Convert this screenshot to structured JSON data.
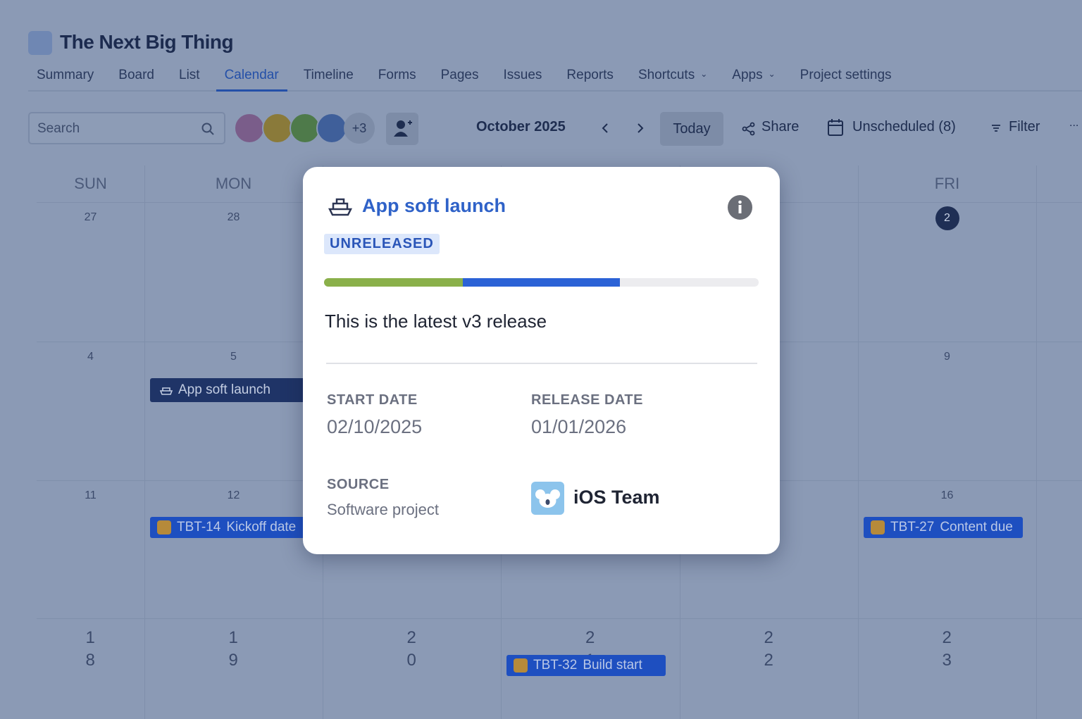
{
  "header": {
    "title": "The Next Big Thing",
    "tabs": [
      {
        "label": "Summary"
      },
      {
        "label": "Board"
      },
      {
        "label": "List"
      },
      {
        "label": "Calendar"
      },
      {
        "label": "Timeline"
      },
      {
        "label": "Forms"
      },
      {
        "label": "Pages"
      },
      {
        "label": "Issues"
      },
      {
        "label": "Reports"
      },
      {
        "label": "Shortcuts",
        "dropdown": true
      },
      {
        "label": "Apps",
        "dropdown": true
      },
      {
        "label": "Project settings"
      }
    ],
    "active_tab": 3
  },
  "toolbar": {
    "search_placeholder": "Search",
    "more_avatars": "+3",
    "month": "October 2025",
    "today": "Today",
    "share": "Share",
    "unscheduled": "Unscheduled (8)",
    "filter": "Filter",
    "more": "..."
  },
  "calendar": {
    "weekdays": [
      "SUN",
      "MON",
      null,
      null,
      null,
      "FRI",
      null
    ],
    "weeks": [
      [
        "27",
        "28",
        null,
        null,
        null,
        "2",
        null
      ],
      [
        "4",
        "5",
        null,
        null,
        null,
        "9",
        null
      ],
      [
        "11",
        "12",
        null,
        null,
        null,
        "16",
        null
      ],
      [
        "18",
        "19",
        "20",
        "21",
        "22",
        "23",
        null
      ]
    ],
    "highlighted": {
      "week": 0,
      "day": 5
    },
    "events": [
      {
        "week": 1,
        "day": 1,
        "kind": "release",
        "title": "App soft launch"
      },
      {
        "week": 2,
        "day": 1,
        "kind": "issue",
        "key": "TBT-14",
        "title": "Kickoff date"
      },
      {
        "week": 2,
        "day": 5,
        "kind": "issue",
        "key": "TBT-27",
        "title": "Content due"
      },
      {
        "week": 3,
        "day": 3,
        "kind": "issue",
        "key": "TBT-32",
        "title": "Build start"
      }
    ]
  },
  "popup": {
    "title": "App soft launch",
    "status": "UNRELEASED",
    "progress": {
      "done": 32,
      "in_progress": 36
    },
    "description": "This is the latest v3 release",
    "start_label": "START DATE",
    "start_date": "02/10/2025",
    "release_label": "RELEASE DATE",
    "release_date": "01/01/2026",
    "source_label": "SOURCE",
    "source": "Software project",
    "team": "iOS Team"
  }
}
